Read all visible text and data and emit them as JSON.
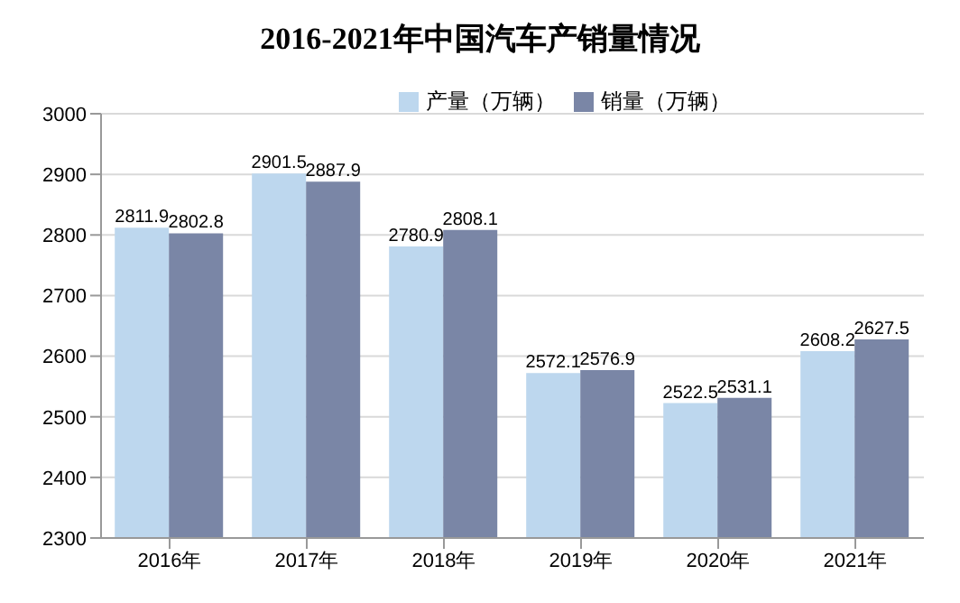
{
  "chart_data": {
    "type": "bar",
    "title": "2016-2021年中国汽车产销量情况",
    "categories": [
      "2016年",
      "2017年",
      "2018年",
      "2019年",
      "2020年",
      "2021年"
    ],
    "series": [
      {
        "name": "产量（万辆）",
        "color": "#bdd7ee",
        "values": [
          2811.9,
          2901.5,
          2780.9,
          2572.1,
          2522.5,
          2608.2
        ]
      },
      {
        "name": "销量（万辆）",
        "color": "#7a86a6",
        "values": [
          2802.8,
          2887.9,
          2808.1,
          2576.9,
          2531.1,
          2627.5
        ]
      }
    ],
    "ylim": [
      2300,
      3000
    ],
    "yticks": [
      2300,
      2400,
      2500,
      2600,
      2700,
      2800,
      2900,
      3000
    ],
    "grid": "y",
    "legend": "top",
    "data_labels": true
  }
}
